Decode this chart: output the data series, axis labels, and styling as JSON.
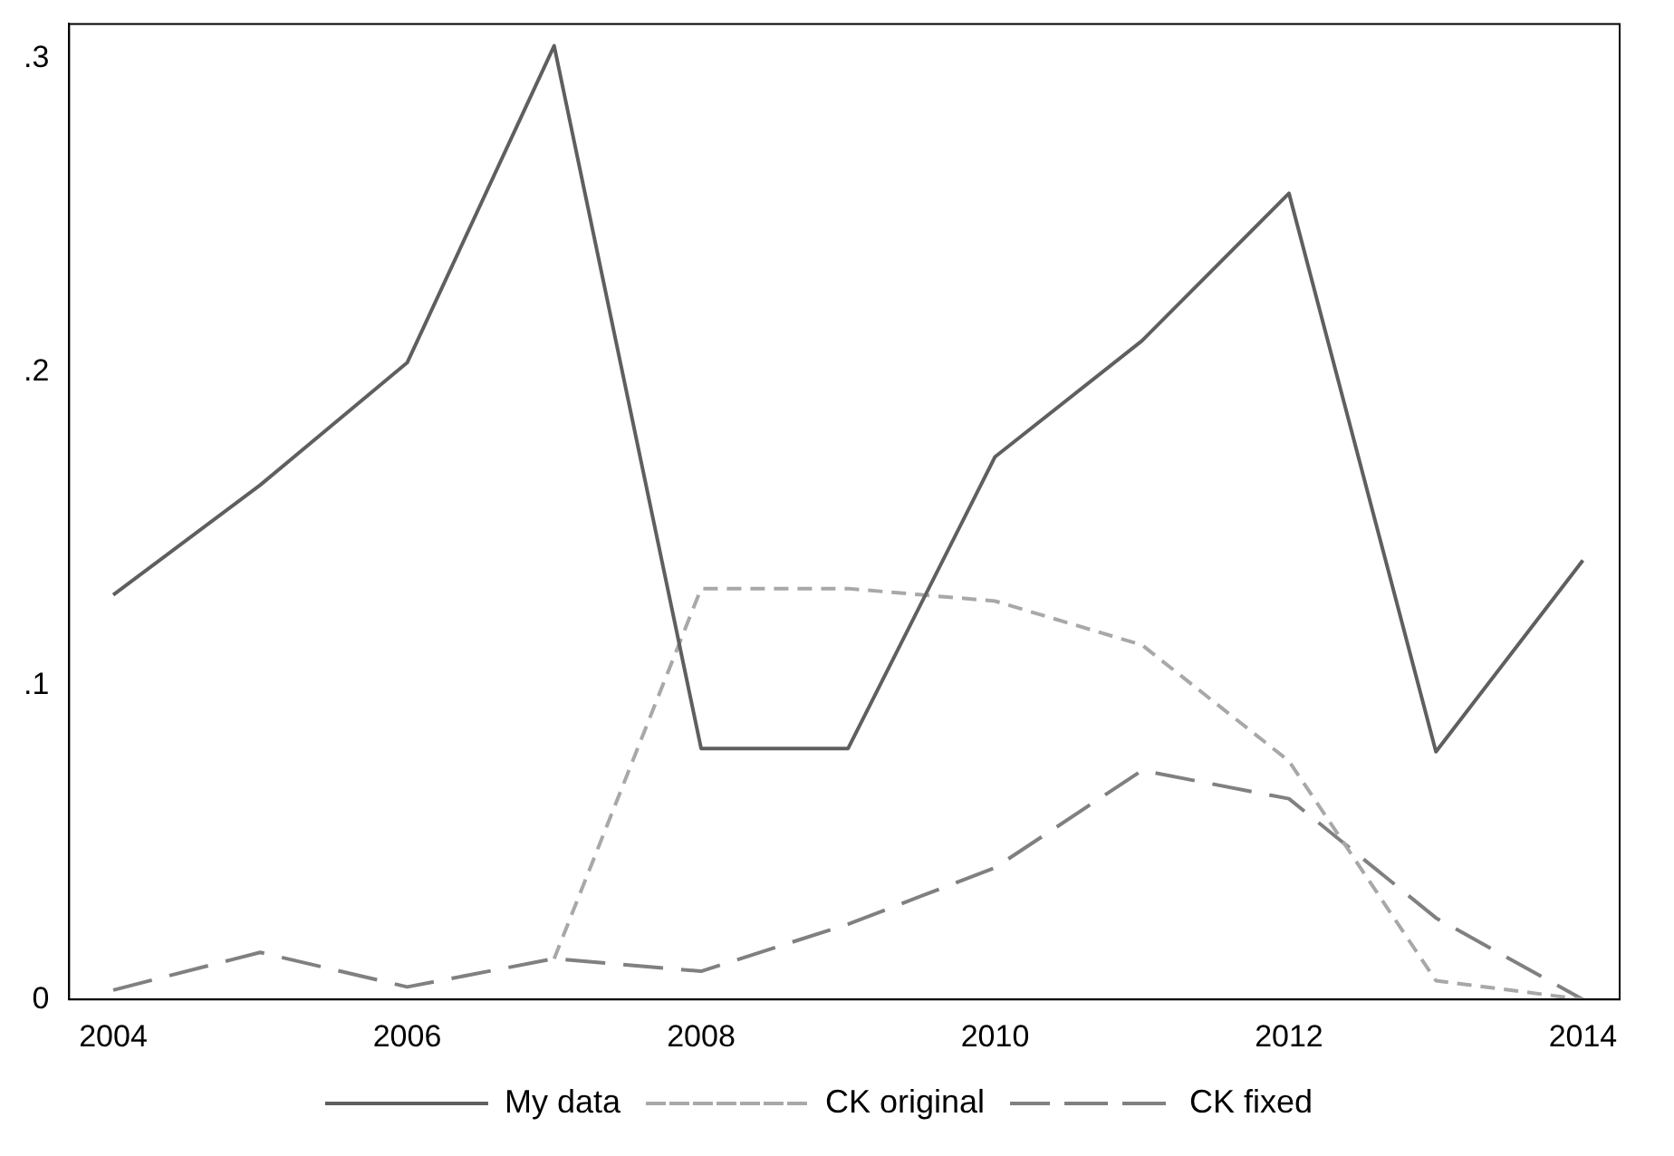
{
  "chart_data": {
    "type": "line",
    "x": [
      2004,
      2005,
      2006,
      2007,
      2008,
      2009,
      2010,
      2011,
      2012,
      2013,
      2014
    ],
    "series": [
      {
        "name": "My data",
        "color": "#5f5f5f",
        "line_style": "solid",
        "values": [
          0.129,
          0.164,
          0.203,
          0.304,
          0.08,
          0.08,
          0.173,
          0.21,
          0.257,
          0.079,
          0.14
        ]
      },
      {
        "name": "CK original",
        "color": "#a8a8a8",
        "line_style": "dotted",
        "values": [
          null,
          null,
          null,
          0.013,
          0.131,
          0.131,
          0.127,
          0.113,
          0.076,
          0.006,
          0
        ]
      },
      {
        "name": "CK fixed",
        "color": "#808080",
        "line_style": "dashed",
        "values": [
          0.003,
          0.015,
          0.004,
          0.013,
          0.009,
          0.024,
          0.042,
          0.073,
          0.064,
          0.026,
          0
        ]
      }
    ],
    "xlim": [
      2003.7,
      2014.25
    ],
    "xticks": [
      2004,
      2006,
      2008,
      2010,
      2012,
      2014
    ],
    "ylim": [
      0,
      0.311
    ],
    "yticks": [
      0,
      {
        "value": 0.1,
        "label": ".1"
      },
      {
        "value": 0.2,
        "label": ".2"
      },
      {
        "value": 0.3,
        "label": ".3"
      }
    ],
    "grid": false,
    "legend": "bottom",
    "marker": "none"
  }
}
